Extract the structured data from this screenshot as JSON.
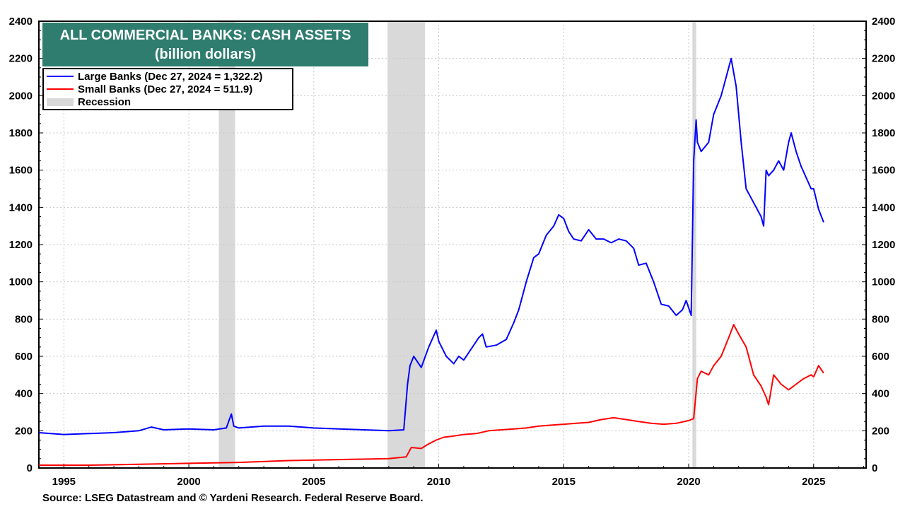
{
  "colors": {
    "large_banks": "#0000ff",
    "small_banks": "#ff0000",
    "recession": "#d9d9d9",
    "title_bg": "#2e7d6e",
    "grid": "#c8c8c8"
  },
  "chart_data": {
    "type": "line",
    "title": "ALL COMMERCIAL BANKS: CASH ASSETS",
    "subtitle": "(billion dollars)",
    "source": "Source: LSEG Datastream and © Yardeni Research. Federal Reserve Board.",
    "xlim": [
      1994.0,
      2027.1
    ],
    "ylim": [
      0,
      2400
    ],
    "grid": true,
    "legend_placement": "top-left",
    "x_ticks": [
      1995,
      2000,
      2005,
      2010,
      2015,
      2020,
      2025
    ],
    "y_ticks": [
      0,
      200,
      400,
      600,
      800,
      1000,
      1200,
      1400,
      1600,
      1800,
      2000,
      2200,
      2400
    ],
    "recessions": [
      [
        2001.2,
        2001.85
      ],
      [
        2007.95,
        2009.45
      ],
      [
        2020.15,
        2020.3
      ]
    ],
    "series": [
      {
        "name": "Large Banks (Dec 27, 2024 = 1,322.2)",
        "color": "#0000ff",
        "x": [
          1994.0,
          1995.0,
          1996.0,
          1997.0,
          1998.0,
          1998.5,
          1999.0,
          2000.0,
          2001.0,
          2001.5,
          2001.7,
          2001.8,
          2002.0,
          2003.0,
          2004.0,
          2005.0,
          2006.0,
          2007.0,
          2008.0,
          2008.6,
          2008.75,
          2008.85,
          2009.0,
          2009.3,
          2009.6,
          2009.9,
          2010.0,
          2010.3,
          2010.6,
          2010.8,
          2011.0,
          2011.3,
          2011.6,
          2011.75,
          2011.9,
          2012.3,
          2012.7,
          2013.0,
          2013.2,
          2013.5,
          2013.8,
          2014.0,
          2014.3,
          2014.6,
          2014.8,
          2015.0,
          2015.2,
          2015.4,
          2015.7,
          2016.0,
          2016.3,
          2016.6,
          2016.9,
          2017.2,
          2017.5,
          2017.8,
          2018.0,
          2018.3,
          2018.6,
          2018.9,
          2019.2,
          2019.5,
          2019.75,
          2019.9,
          2020.1,
          2020.2,
          2020.3,
          2020.35,
          2020.5,
          2020.8,
          2021.0,
          2021.3,
          2021.5,
          2021.7,
          2021.9,
          2022.1,
          2022.3,
          2022.5,
          2022.7,
          2022.9,
          2023.0,
          2023.1,
          2023.2,
          2023.4,
          2023.6,
          2023.8,
          2024.0,
          2024.1,
          2024.3,
          2024.5,
          2024.7,
          2024.9,
          2025.0,
          2025.2,
          2025.4
        ],
        "y": [
          190,
          180,
          185,
          190,
          200,
          220,
          205,
          210,
          205,
          215,
          290,
          225,
          215,
          225,
          225,
          215,
          210,
          205,
          200,
          205,
          450,
          550,
          600,
          540,
          650,
          740,
          680,
          600,
          560,
          600,
          580,
          640,
          700,
          720,
          650,
          660,
          690,
          780,
          850,
          1000,
          1130,
          1150,
          1250,
          1300,
          1360,
          1340,
          1270,
          1230,
          1220,
          1280,
          1230,
          1230,
          1210,
          1230,
          1220,
          1180,
          1090,
          1100,
          1000,
          880,
          870,
          820,
          850,
          900,
          820,
          1650,
          1870,
          1750,
          1700,
          1750,
          1900,
          2000,
          2100,
          2200,
          2050,
          1750,
          1500,
          1450,
          1400,
          1350,
          1300,
          1600,
          1570,
          1600,
          1650,
          1600,
          1750,
          1800,
          1700,
          1620,
          1560,
          1500,
          1500,
          1390,
          1320
        ]
      },
      {
        "name": "Small Banks (Dec 27, 2024 = 511.9)",
        "color": "#ff0000",
        "x": [
          1994.0,
          1996.0,
          1998.0,
          2000.0,
          2002.0,
          2004.0,
          2006.0,
          2008.0,
          2008.7,
          2008.9,
          2009.3,
          2009.6,
          2009.9,
          2010.2,
          2010.5,
          2011.0,
          2011.5,
          2012.0,
          2012.5,
          2013.0,
          2013.5,
          2014.0,
          2014.5,
          2015.0,
          2015.5,
          2016.0,
          2016.5,
          2017.0,
          2017.5,
          2018.0,
          2018.5,
          2019.0,
          2019.5,
          2020.0,
          2020.2,
          2020.35,
          2020.5,
          2020.8,
          2021.0,
          2021.3,
          2021.6,
          2021.8,
          2022.0,
          2022.3,
          2022.6,
          2022.9,
          2023.1,
          2023.2,
          2023.4,
          2023.7,
          2024.0,
          2024.3,
          2024.6,
          2024.9,
          2025.0,
          2025.2,
          2025.4
        ],
        "y": [
          15,
          15,
          20,
          25,
          30,
          40,
          45,
          50,
          60,
          110,
          105,
          130,
          150,
          165,
          170,
          180,
          185,
          200,
          205,
          210,
          215,
          225,
          230,
          235,
          240,
          245,
          260,
          270,
          260,
          250,
          240,
          235,
          240,
          255,
          265,
          480,
          520,
          500,
          550,
          600,
          700,
          770,
          720,
          650,
          500,
          440,
          380,
          340,
          500,
          450,
          420,
          450,
          480,
          500,
          490,
          550,
          510
        ]
      },
      {
        "name": "Recession",
        "color": "#d9d9d9"
      }
    ]
  }
}
